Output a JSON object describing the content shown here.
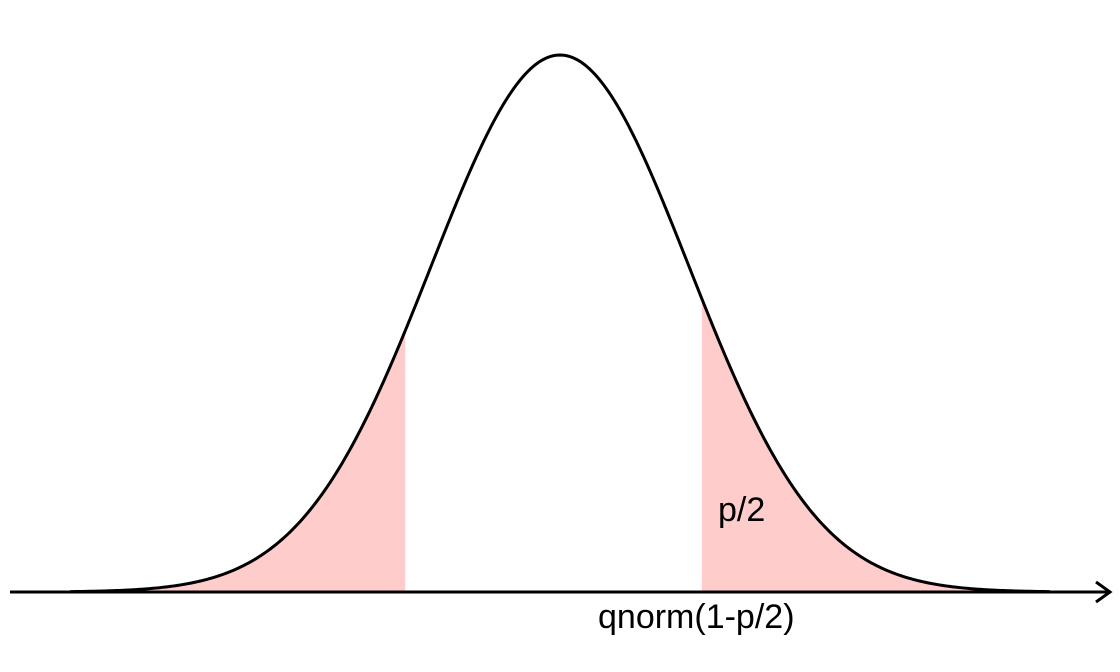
{
  "chart_data": {
    "type": "area",
    "distribution": "standard normal density",
    "mean": 0,
    "sd": 1,
    "xlim": [
      -3.8,
      3.8
    ],
    "shaded_regions": [
      {
        "from": -3.8,
        "to": -1.2
      },
      {
        "from": 1.1,
        "to": 3.8
      }
    ],
    "annotations": {
      "tail_label": "p/2",
      "quantile_label": "qnorm(1-p/2)"
    },
    "axes": {
      "x_arrow": true,
      "y_axis": false,
      "grid": false
    },
    "colors": {
      "curve": "#000000",
      "shade": "#ffcccc",
      "axis": "#000000"
    }
  }
}
